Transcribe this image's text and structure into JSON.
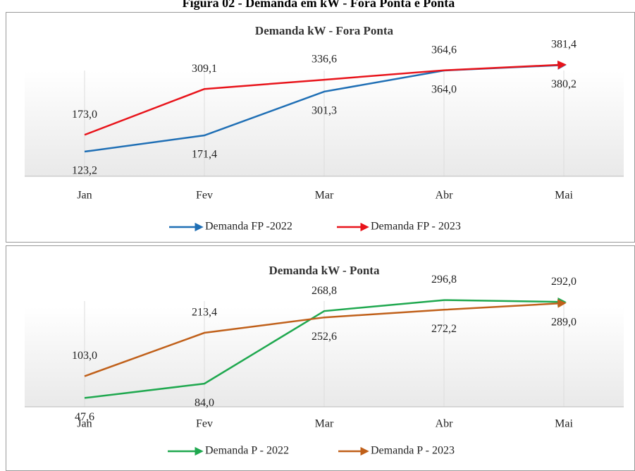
{
  "title": "Figura 02 - Demanda em kW - Fora Ponta e Ponta",
  "chart_data": [
    {
      "type": "line",
      "title": "Demanda kW - Fora Ponta",
      "categories": [
        "Jan",
        "Fev",
        "Mar",
        "Abr",
        "Mai"
      ],
      "ylim": [
        50,
        500
      ],
      "series": [
        {
          "name": "Demanda FP -2022",
          "color": "#1f6fb5",
          "values": [
            123.2,
            171.4,
            301.3,
            364.0,
            380.2
          ],
          "value_labels": [
            "123,2",
            "171,4",
            "301,3",
            "364,0",
            "380,2"
          ]
        },
        {
          "name": "Demanda FP - 2023",
          "color": "#e8141b",
          "values": [
            173.0,
            309.1,
            336.6,
            364.6,
            381.4
          ],
          "value_labels": [
            "173,0",
            "309,1",
            "336,6",
            "364,6",
            "381,4"
          ]
        }
      ]
    },
    {
      "type": "line",
      "title": "Demanda kW - Ponta",
      "categories": [
        "Jan",
        "Fev",
        "Mar",
        "Abr",
        "Mai"
      ],
      "ylim": [
        25,
        375
      ],
      "series": [
        {
          "name": "Demanda P - 2022",
          "color": "#1fa84f",
          "values": [
            47.6,
            84.0,
            268.8,
            296.8,
            292.0
          ],
          "value_labels": [
            "47,6",
            "84,0",
            "268,8",
            "296,8",
            "292,0"
          ]
        },
        {
          "name": "Demanda P - 2023",
          "color": "#c0601a",
          "values": [
            103.0,
            213.4,
            252.6,
            272.2,
            289.0
          ],
          "value_labels": [
            "103,0",
            "213,4",
            "252,6",
            "272,2",
            "289,0"
          ]
        }
      ]
    }
  ]
}
